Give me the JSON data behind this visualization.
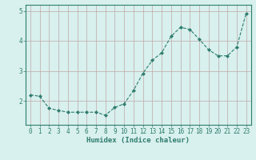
{
  "x": [
    0,
    1,
    2,
    3,
    4,
    5,
    6,
    7,
    8,
    9,
    10,
    11,
    12,
    13,
    14,
    15,
    16,
    17,
    18,
    19,
    20,
    21,
    22,
    23
  ],
  "y": [
    2.2,
    2.15,
    1.75,
    1.68,
    1.62,
    1.62,
    1.62,
    1.62,
    1.52,
    1.78,
    1.9,
    2.35,
    2.92,
    3.35,
    3.6,
    4.15,
    4.45,
    4.38,
    4.05,
    3.7,
    3.5,
    3.5,
    3.8,
    4.92
  ],
  "line_color": "#2e7d6e",
  "marker": "D",
  "marker_size": 2.0,
  "bg_color": "#d8f0ee",
  "grid_color": "#c0a8a8",
  "axis_color": "#2e7d6e",
  "xlabel": "Humidex (Indice chaleur)",
  "xlabel_fontsize": 6.5,
  "ylim": [
    1.2,
    5.2
  ],
  "xlim": [
    -0.5,
    23.5
  ],
  "yticks": [
    2,
    3,
    4,
    5
  ],
  "xtick_labels": [
    "0",
    "1",
    "2",
    "3",
    "4",
    "5",
    "6",
    "7",
    "8",
    "9",
    "10",
    "11",
    "12",
    "13",
    "14",
    "15",
    "16",
    "17",
    "18",
    "19",
    "20",
    "21",
    "22",
    "23"
  ],
  "tick_fontsize": 5.5
}
